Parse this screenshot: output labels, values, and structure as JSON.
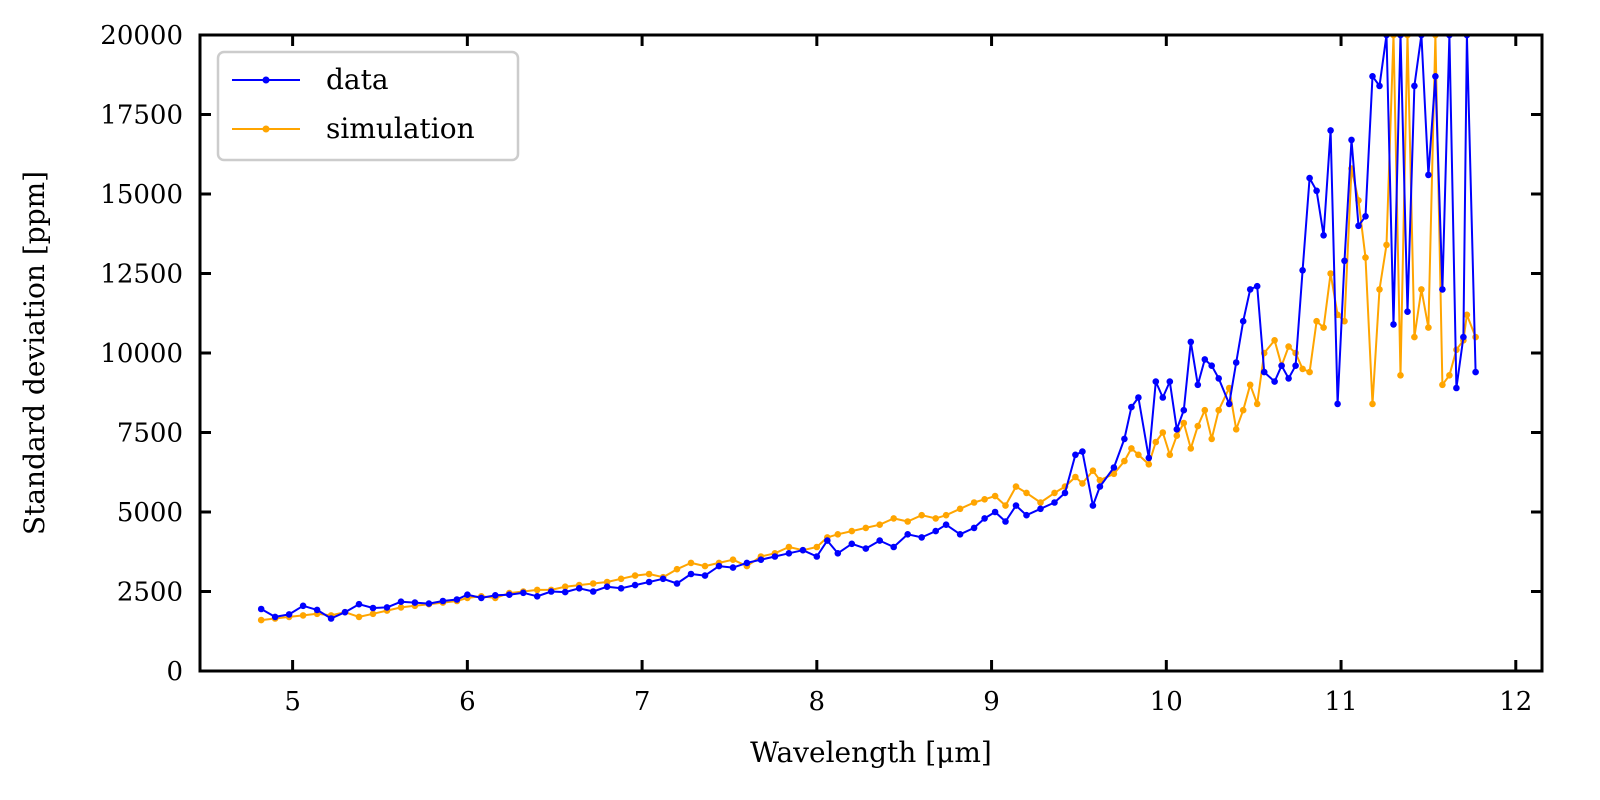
{
  "chart_data": {
    "type": "line",
    "title": "",
    "xlabel": "Wavelength [μm]",
    "ylabel": "Standard deviation [ppm]",
    "xlim": [
      4.47,
      12.15
    ],
    "ylim": [
      0,
      20000
    ],
    "x_ticks": [
      5,
      6,
      7,
      8,
      9,
      10,
      11,
      12
    ],
    "y_ticks": [
      0,
      2500,
      5000,
      7500,
      10000,
      12500,
      15000,
      17500,
      20000
    ],
    "grid": false,
    "legend_position": "top-left",
    "series": [
      {
        "name": "data",
        "color": "#0000ff",
        "points": [
          [
            4.82,
            1950
          ],
          [
            4.9,
            1700
          ],
          [
            4.98,
            1780
          ],
          [
            5.06,
            2050
          ],
          [
            5.14,
            1920
          ],
          [
            5.22,
            1650
          ],
          [
            5.3,
            1850
          ],
          [
            5.38,
            2100
          ],
          [
            5.46,
            1980
          ],
          [
            5.54,
            2000
          ],
          [
            5.62,
            2180
          ],
          [
            5.7,
            2150
          ],
          [
            5.78,
            2120
          ],
          [
            5.86,
            2200
          ],
          [
            5.94,
            2250
          ],
          [
            6.0,
            2400
          ],
          [
            6.08,
            2300
          ],
          [
            6.16,
            2380
          ],
          [
            6.24,
            2400
          ],
          [
            6.32,
            2460
          ],
          [
            6.4,
            2350
          ],
          [
            6.48,
            2500
          ],
          [
            6.56,
            2480
          ],
          [
            6.64,
            2600
          ],
          [
            6.72,
            2500
          ],
          [
            6.8,
            2650
          ],
          [
            6.88,
            2600
          ],
          [
            6.96,
            2700
          ],
          [
            7.04,
            2800
          ],
          [
            7.12,
            2900
          ],
          [
            7.2,
            2750
          ],
          [
            7.28,
            3050
          ],
          [
            7.36,
            3000
          ],
          [
            7.44,
            3300
          ],
          [
            7.52,
            3250
          ],
          [
            7.6,
            3400
          ],
          [
            7.68,
            3500
          ],
          [
            7.76,
            3600
          ],
          [
            7.84,
            3700
          ],
          [
            7.92,
            3800
          ],
          [
            8.0,
            3600
          ],
          [
            8.06,
            4100
          ],
          [
            8.12,
            3700
          ],
          [
            8.2,
            4000
          ],
          [
            8.28,
            3850
          ],
          [
            8.36,
            4100
          ],
          [
            8.44,
            3900
          ],
          [
            8.52,
            4300
          ],
          [
            8.6,
            4200
          ],
          [
            8.68,
            4400
          ],
          [
            8.74,
            4600
          ],
          [
            8.82,
            4300
          ],
          [
            8.9,
            4500
          ],
          [
            8.96,
            4800
          ],
          [
            9.02,
            5000
          ],
          [
            9.08,
            4700
          ],
          [
            9.14,
            5200
          ],
          [
            9.2,
            4900
          ],
          [
            9.28,
            5100
          ],
          [
            9.36,
            5300
          ],
          [
            9.42,
            5600
          ],
          [
            9.48,
            6800
          ],
          [
            9.52,
            6900
          ],
          [
            9.58,
            5200
          ],
          [
            9.62,
            5800
          ],
          [
            9.7,
            6400
          ],
          [
            9.76,
            7300
          ],
          [
            9.8,
            8300
          ],
          [
            9.84,
            8600
          ],
          [
            9.9,
            6700
          ],
          [
            9.94,
            9100
          ],
          [
            9.98,
            8600
          ],
          [
            10.02,
            9100
          ],
          [
            10.06,
            7600
          ],
          [
            10.1,
            8200
          ],
          [
            10.14,
            10350
          ],
          [
            10.18,
            9000
          ],
          [
            10.22,
            9800
          ],
          [
            10.26,
            9600
          ],
          [
            10.3,
            9200
          ],
          [
            10.36,
            8400
          ],
          [
            10.4,
            9700
          ],
          [
            10.44,
            11000
          ],
          [
            10.48,
            12000
          ],
          [
            10.52,
            12100
          ],
          [
            10.56,
            9400
          ],
          [
            10.62,
            9100
          ],
          [
            10.66,
            9600
          ],
          [
            10.7,
            9200
          ],
          [
            10.74,
            9600
          ],
          [
            10.78,
            12600
          ],
          [
            10.82,
            15500
          ],
          [
            10.86,
            15100
          ],
          [
            10.9,
            13700
          ],
          [
            10.94,
            17000
          ],
          [
            10.98,
            8400
          ],
          [
            11.02,
            12900
          ],
          [
            11.06,
            16700
          ],
          [
            11.1,
            14000
          ],
          [
            11.14,
            14300
          ],
          [
            11.18,
            18700
          ],
          [
            11.22,
            18400
          ],
          [
            11.26,
            20000
          ],
          [
            11.3,
            10900
          ],
          [
            11.34,
            20000
          ],
          [
            11.38,
            11300
          ],
          [
            11.42,
            18400
          ],
          [
            11.46,
            20000
          ],
          [
            11.5,
            15600
          ],
          [
            11.54,
            18700
          ],
          [
            11.58,
            12000
          ],
          [
            11.62,
            20000
          ],
          [
            11.66,
            8900
          ],
          [
            11.7,
            10500
          ],
          [
            11.72,
            20000
          ],
          [
            11.77,
            9400
          ]
        ]
      },
      {
        "name": "simulation",
        "color": "#ffa500",
        "points": [
          [
            4.82,
            1600
          ],
          [
            4.9,
            1650
          ],
          [
            4.98,
            1700
          ],
          [
            5.06,
            1750
          ],
          [
            5.14,
            1800
          ],
          [
            5.22,
            1750
          ],
          [
            5.3,
            1850
          ],
          [
            5.38,
            1700
          ],
          [
            5.46,
            1800
          ],
          [
            5.54,
            1900
          ],
          [
            5.62,
            2000
          ],
          [
            5.7,
            2050
          ],
          [
            5.78,
            2100
          ],
          [
            5.86,
            2150
          ],
          [
            5.94,
            2200
          ],
          [
            6.0,
            2300
          ],
          [
            6.08,
            2350
          ],
          [
            6.16,
            2300
          ],
          [
            6.24,
            2450
          ],
          [
            6.32,
            2500
          ],
          [
            6.4,
            2550
          ],
          [
            6.48,
            2550
          ],
          [
            6.56,
            2650
          ],
          [
            6.64,
            2700
          ],
          [
            6.72,
            2750
          ],
          [
            6.8,
            2800
          ],
          [
            6.88,
            2900
          ],
          [
            6.96,
            3000
          ],
          [
            7.04,
            3050
          ],
          [
            7.12,
            2950
          ],
          [
            7.2,
            3200
          ],
          [
            7.28,
            3400
          ],
          [
            7.36,
            3300
          ],
          [
            7.44,
            3400
          ],
          [
            7.52,
            3500
          ],
          [
            7.6,
            3300
          ],
          [
            7.68,
            3600
          ],
          [
            7.76,
            3700
          ],
          [
            7.84,
            3900
          ],
          [
            7.92,
            3800
          ],
          [
            8.0,
            3900
          ],
          [
            8.06,
            4200
          ],
          [
            8.12,
            4300
          ],
          [
            8.2,
            4400
          ],
          [
            8.28,
            4500
          ],
          [
            8.36,
            4600
          ],
          [
            8.44,
            4800
          ],
          [
            8.52,
            4700
          ],
          [
            8.6,
            4900
          ],
          [
            8.68,
            4800
          ],
          [
            8.74,
            4900
          ],
          [
            8.82,
            5100
          ],
          [
            8.9,
            5300
          ],
          [
            8.96,
            5400
          ],
          [
            9.02,
            5500
          ],
          [
            9.08,
            5200
          ],
          [
            9.14,
            5800
          ],
          [
            9.2,
            5600
          ],
          [
            9.28,
            5300
          ],
          [
            9.36,
            5600
          ],
          [
            9.42,
            5800
          ],
          [
            9.48,
            6100
          ],
          [
            9.52,
            5900
          ],
          [
            9.58,
            6300
          ],
          [
            9.62,
            6000
          ],
          [
            9.7,
            6200
          ],
          [
            9.76,
            6600
          ],
          [
            9.8,
            7000
          ],
          [
            9.84,
            6800
          ],
          [
            9.9,
            6500
          ],
          [
            9.94,
            7200
          ],
          [
            9.98,
            7500
          ],
          [
            10.02,
            6800
          ],
          [
            10.06,
            7400
          ],
          [
            10.1,
            7800
          ],
          [
            10.14,
            7000
          ],
          [
            10.18,
            7700
          ],
          [
            10.22,
            8200
          ],
          [
            10.26,
            7300
          ],
          [
            10.3,
            8200
          ],
          [
            10.36,
            8900
          ],
          [
            10.4,
            7600
          ],
          [
            10.44,
            8200
          ],
          [
            10.48,
            9000
          ],
          [
            10.52,
            8400
          ],
          [
            10.56,
            10000
          ],
          [
            10.62,
            10400
          ],
          [
            10.66,
            9600
          ],
          [
            10.7,
            10200
          ],
          [
            10.74,
            10000
          ],
          [
            10.78,
            9500
          ],
          [
            10.82,
            9400
          ],
          [
            10.86,
            11000
          ],
          [
            10.9,
            10800
          ],
          [
            10.94,
            12500
          ],
          [
            10.98,
            11200
          ],
          [
            11.02,
            11000
          ],
          [
            11.06,
            15800
          ],
          [
            11.1,
            14800
          ],
          [
            11.14,
            13000
          ],
          [
            11.18,
            8400
          ],
          [
            11.22,
            12000
          ],
          [
            11.26,
            13400
          ],
          [
            11.3,
            20000
          ],
          [
            11.34,
            9300
          ],
          [
            11.38,
            20000
          ],
          [
            11.42,
            10500
          ],
          [
            11.46,
            12000
          ],
          [
            11.5,
            10800
          ],
          [
            11.54,
            20000
          ],
          [
            11.58,
            9000
          ],
          [
            11.62,
            9300
          ],
          [
            11.66,
            10100
          ],
          [
            11.7,
            10400
          ],
          [
            11.72,
            11200
          ],
          [
            11.77,
            10500
          ]
        ]
      }
    ]
  }
}
